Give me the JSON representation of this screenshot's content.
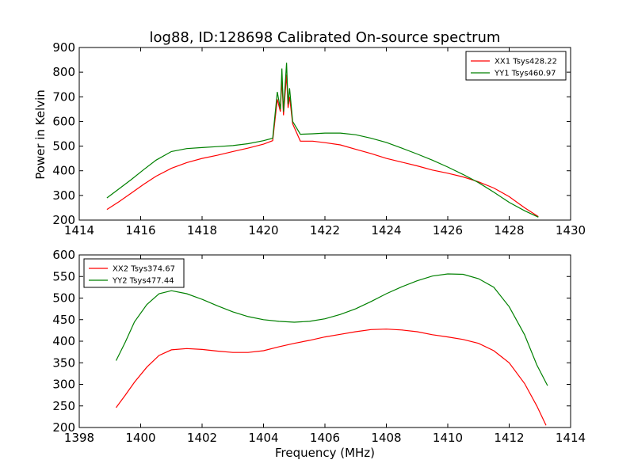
{
  "figure": {
    "title": "log88, ID:128698 Calibrated On-source spectrum",
    "xlabel": "Frequency (MHz)",
    "ylabel": "Power in Kelvin"
  },
  "chart_data": [
    {
      "type": "line",
      "title": "log88, ID:128698 Calibrated On-source spectrum",
      "xlabel": "",
      "ylabel": "Power in Kelvin",
      "xlim": [
        1414,
        1430
      ],
      "ylim": [
        200,
        900
      ],
      "xticks": [
        1414,
        1416,
        1418,
        1420,
        1422,
        1424,
        1426,
        1428,
        1430
      ],
      "yticks": [
        200,
        300,
        400,
        500,
        600,
        700,
        800,
        900
      ],
      "grid": false,
      "legend_position": "top-right",
      "series": [
        {
          "name": "XX1 Tsys428.22",
          "color": "#ff0000",
          "points": [
            [
              1414.9,
              243
            ],
            [
              1415.3,
              275
            ],
            [
              1415.7,
              310
            ],
            [
              1416.1,
              345
            ],
            [
              1416.5,
              378
            ],
            [
              1417.0,
              410
            ],
            [
              1417.5,
              433
            ],
            [
              1418.0,
              450
            ],
            [
              1418.5,
              463
            ],
            [
              1419.0,
              478
            ],
            [
              1419.5,
              492
            ],
            [
              1420.0,
              508
            ],
            [
              1420.3,
              522
            ],
            [
              1420.45,
              690
            ],
            [
              1420.55,
              640
            ],
            [
              1420.6,
              775
            ],
            [
              1420.65,
              625
            ],
            [
              1420.75,
              790
            ],
            [
              1420.8,
              655
            ],
            [
              1420.85,
              700
            ],
            [
              1420.95,
              590
            ],
            [
              1421.2,
              520
            ],
            [
              1421.6,
              520
            ],
            [
              1422.0,
              514
            ],
            [
              1422.5,
              505
            ],
            [
              1423.0,
              487
            ],
            [
              1423.5,
              470
            ],
            [
              1424.0,
              450
            ],
            [
              1424.5,
              435
            ],
            [
              1425.0,
              420
            ],
            [
              1425.5,
              403
            ],
            [
              1426.0,
              390
            ],
            [
              1426.5,
              375
            ],
            [
              1427.0,
              355
            ],
            [
              1427.5,
              330
            ],
            [
              1428.0,
              295
            ],
            [
              1428.5,
              250
            ],
            [
              1428.95,
              214
            ]
          ]
        },
        {
          "name": "YY1 Tsys460.97",
          "color": "#008000",
          "points": [
            [
              1414.9,
              290
            ],
            [
              1415.3,
              327
            ],
            [
              1415.7,
              365
            ],
            [
              1416.1,
              405
            ],
            [
              1416.5,
              443
            ],
            [
              1417.0,
              478
            ],
            [
              1417.5,
              490
            ],
            [
              1418.0,
              494
            ],
            [
              1418.5,
              498
            ],
            [
              1419.0,
              502
            ],
            [
              1419.5,
              510
            ],
            [
              1420.0,
              522
            ],
            [
              1420.3,
              532
            ],
            [
              1420.45,
              720
            ],
            [
              1420.55,
              650
            ],
            [
              1420.6,
              815
            ],
            [
              1420.65,
              640
            ],
            [
              1420.75,
              838
            ],
            [
              1420.8,
              670
            ],
            [
              1420.85,
              735
            ],
            [
              1420.95,
              600
            ],
            [
              1421.2,
              548
            ],
            [
              1421.6,
              550
            ],
            [
              1422.0,
              553
            ],
            [
              1422.5,
              553
            ],
            [
              1423.0,
              546
            ],
            [
              1423.5,
              532
            ],
            [
              1424.0,
              515
            ],
            [
              1424.5,
              492
            ],
            [
              1425.0,
              468
            ],
            [
              1425.5,
              443
            ],
            [
              1426.0,
              415
            ],
            [
              1426.5,
              385
            ],
            [
              1427.0,
              352
            ],
            [
              1427.5,
              313
            ],
            [
              1428.0,
              272
            ],
            [
              1428.5,
              238
            ],
            [
              1428.95,
              212
            ]
          ]
        }
      ]
    },
    {
      "type": "line",
      "title": "",
      "xlabel": "Frequency (MHz)",
      "ylabel": "",
      "xlim": [
        1398,
        1414
      ],
      "ylim": [
        200,
        600
      ],
      "xticks": [
        1398,
        1400,
        1402,
        1404,
        1406,
        1408,
        1410,
        1412,
        1414
      ],
      "yticks": [
        200,
        250,
        300,
        350,
        400,
        450,
        500,
        550,
        600
      ],
      "grid": false,
      "legend_position": "top-left",
      "series": [
        {
          "name": "XX2 Tsys374.67",
          "color": "#ff0000",
          "points": [
            [
              1399.2,
              246
            ],
            [
              1399.5,
              275
            ],
            [
              1399.8,
              305
            ],
            [
              1400.2,
              340
            ],
            [
              1400.6,
              367
            ],
            [
              1401.0,
              380
            ],
            [
              1401.5,
              383
            ],
            [
              1402.0,
              381
            ],
            [
              1402.5,
              377
            ],
            [
              1403.0,
              374
            ],
            [
              1403.5,
              374
            ],
            [
              1404.0,
              378
            ],
            [
              1404.5,
              387
            ],
            [
              1405.0,
              395
            ],
            [
              1405.5,
              402
            ],
            [
              1406.0,
              410
            ],
            [
              1406.5,
              416
            ],
            [
              1407.0,
              422
            ],
            [
              1407.5,
              427
            ],
            [
              1408.0,
              428
            ],
            [
              1408.5,
              426
            ],
            [
              1409.0,
              422
            ],
            [
              1409.5,
              415
            ],
            [
              1410.0,
              410
            ],
            [
              1410.5,
              404
            ],
            [
              1411.0,
              395
            ],
            [
              1411.5,
              378
            ],
            [
              1412.0,
              350
            ],
            [
              1412.5,
              302
            ],
            [
              1412.9,
              250
            ],
            [
              1413.2,
              205
            ]
          ]
        },
        {
          "name": "YY2 Tsys477.44",
          "color": "#008000",
          "points": [
            [
              1399.2,
              355
            ],
            [
              1399.5,
              398
            ],
            [
              1399.8,
              445
            ],
            [
              1400.2,
              485
            ],
            [
              1400.6,
              510
            ],
            [
              1401.0,
              517
            ],
            [
              1401.5,
              510
            ],
            [
              1402.0,
              497
            ],
            [
              1402.5,
              482
            ],
            [
              1403.0,
              468
            ],
            [
              1403.5,
              457
            ],
            [
              1404.0,
              450
            ],
            [
              1404.5,
              446
            ],
            [
              1405.0,
              444
            ],
            [
              1405.5,
              446
            ],
            [
              1406.0,
              452
            ],
            [
              1406.5,
              462
            ],
            [
              1407.0,
              475
            ],
            [
              1407.5,
              492
            ],
            [
              1408.0,
              510
            ],
            [
              1408.5,
              526
            ],
            [
              1409.0,
              540
            ],
            [
              1409.5,
              551
            ],
            [
              1410.0,
              556
            ],
            [
              1410.5,
              555
            ],
            [
              1411.0,
              545
            ],
            [
              1411.5,
              525
            ],
            [
              1412.0,
              480
            ],
            [
              1412.5,
              415
            ],
            [
              1412.9,
              345
            ],
            [
              1413.25,
              297
            ]
          ]
        }
      ]
    }
  ]
}
